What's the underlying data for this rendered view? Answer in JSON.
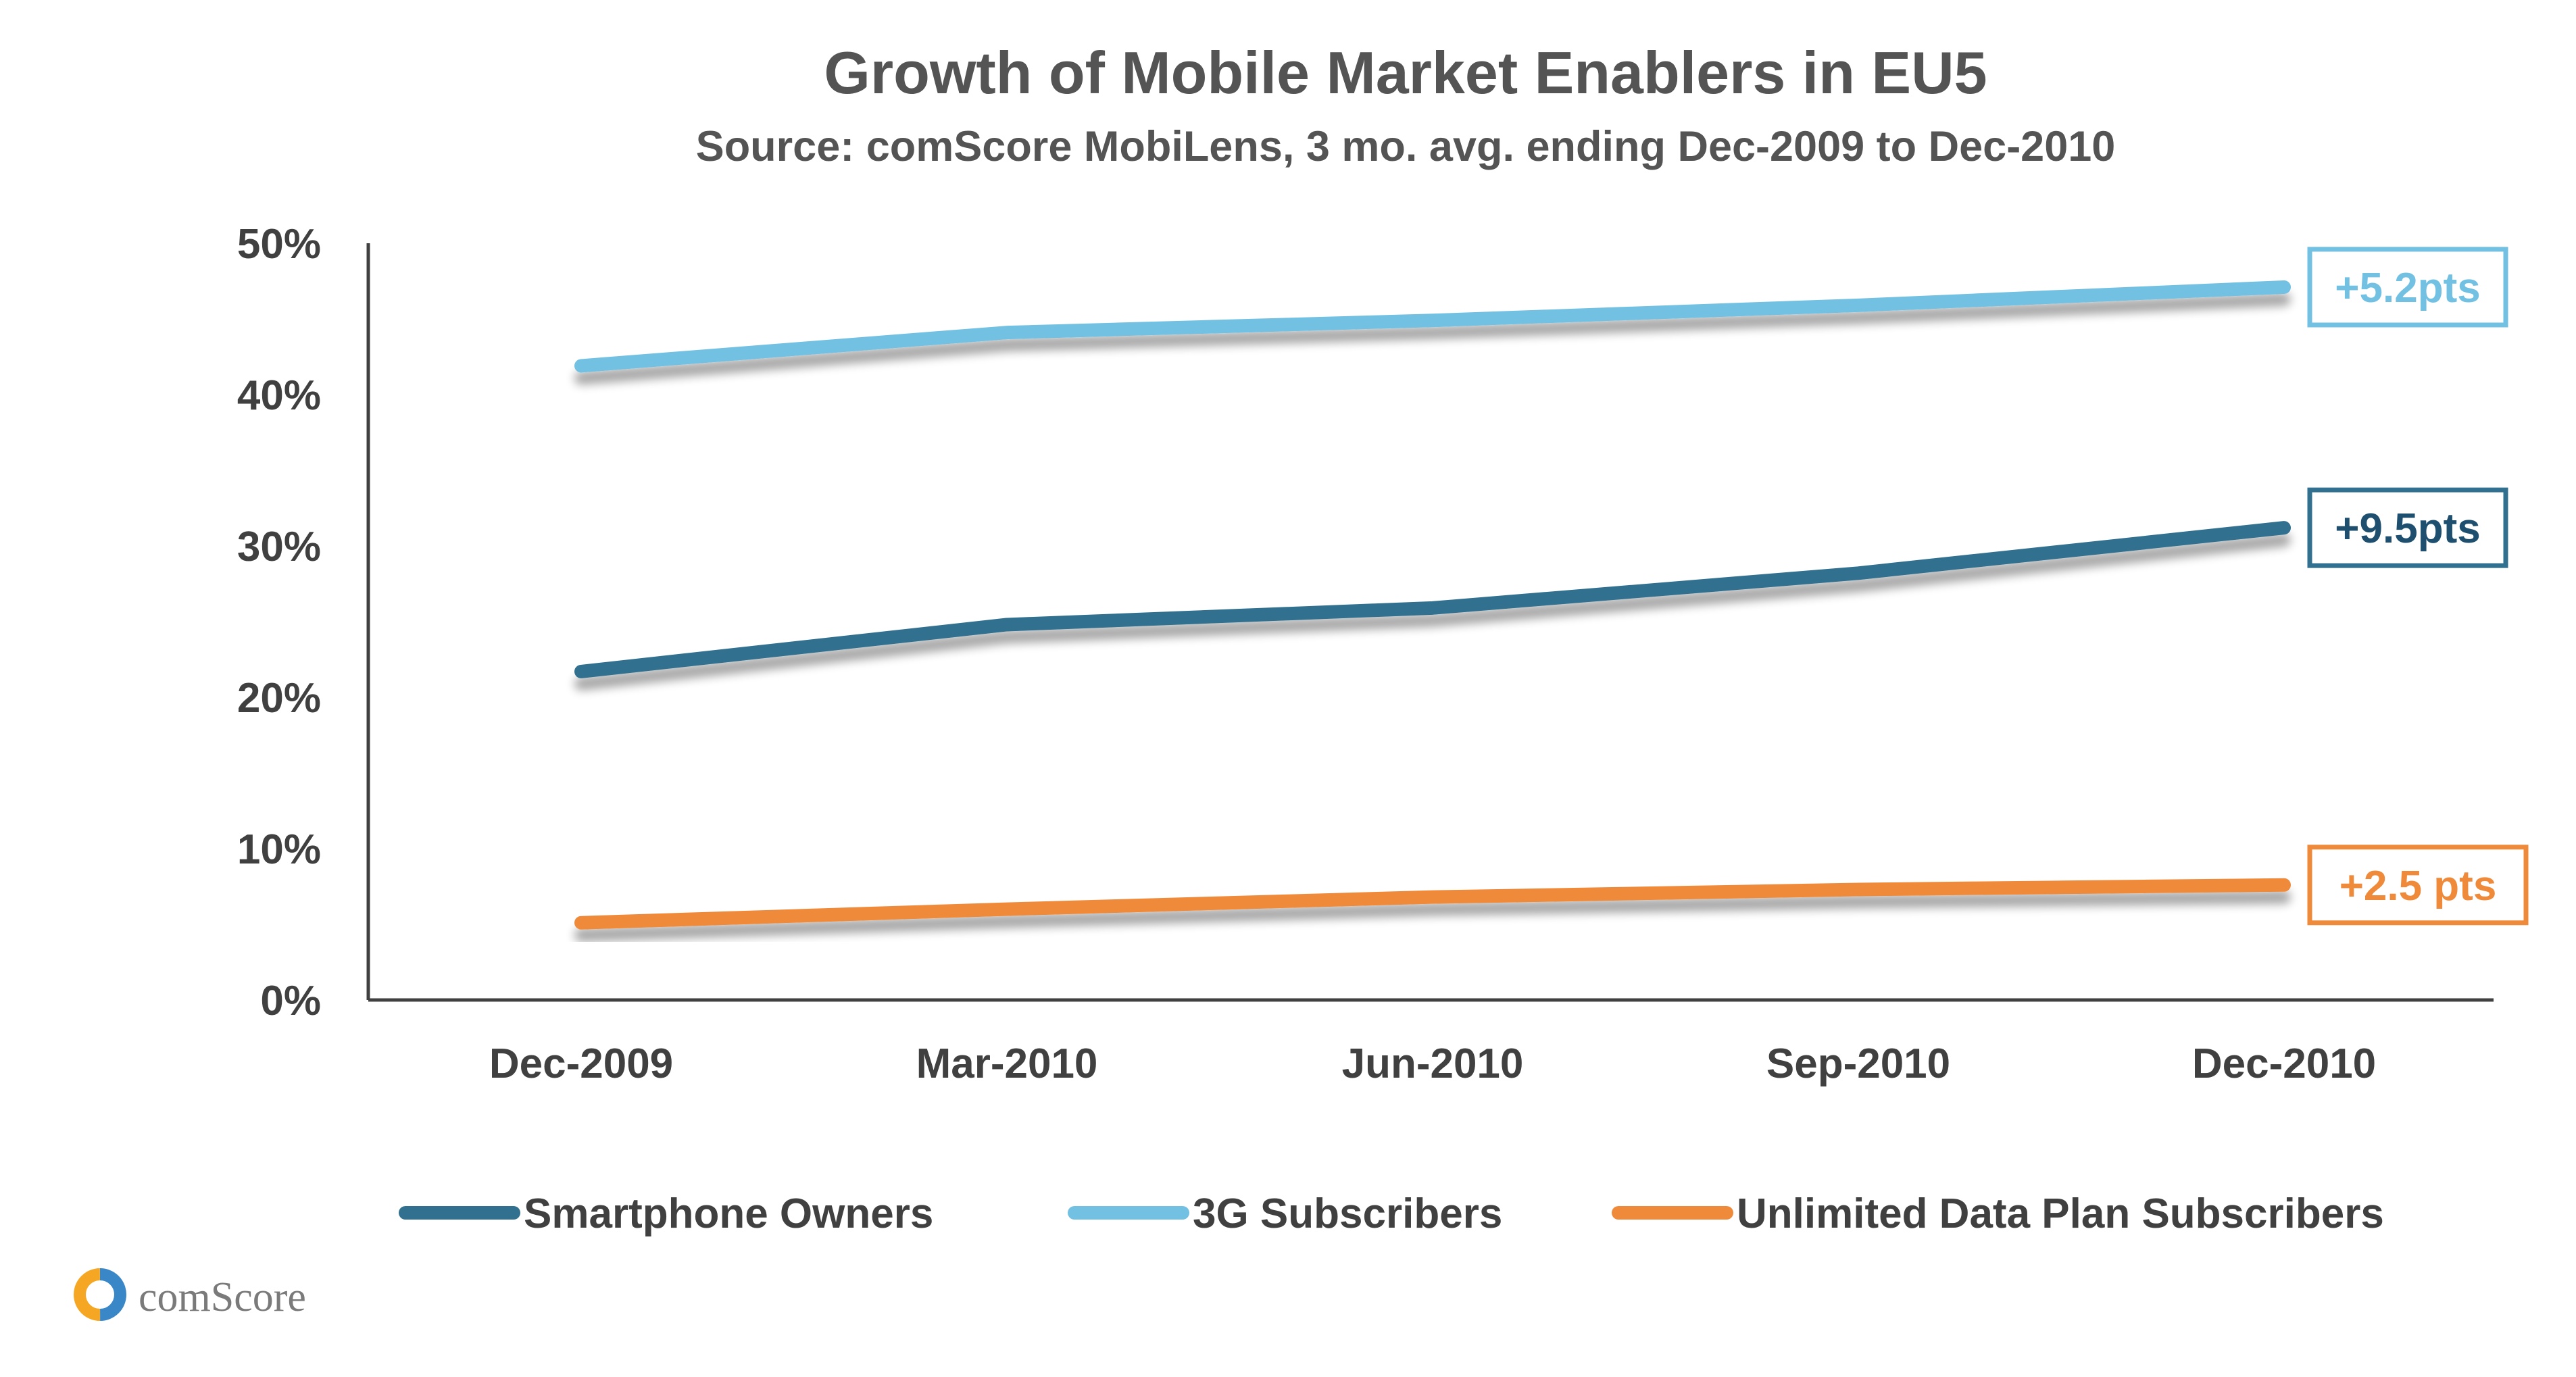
{
  "chart_data": {
    "type": "line",
    "title": "Growth of Mobile Market Enablers in EU5",
    "subtitle": "Source: comScore MobiLens, 3 mo. avg. ending Dec-2009 to Dec-2010",
    "categories": [
      "Dec-2009",
      "Mar-2010",
      "Jun-2010",
      "Sep-2010",
      "Dec-2010"
    ],
    "ylim": [
      0,
      50
    ],
    "y_ticks": [
      0,
      10,
      20,
      30,
      40,
      50
    ],
    "y_tick_labels": [
      "0%",
      "10%",
      "20%",
      "30%",
      "40%",
      "50%"
    ],
    "grid": false,
    "legend_position": "bottom",
    "series": [
      {
        "name": "Smartphone Owners",
        "color": "#31708F",
        "values": [
          21.7,
          24.8,
          25.9,
          28.2,
          31.2
        ],
        "annotation": "+9.5pts"
      },
      {
        "name": "3G Subscribers",
        "color": "#72C0E2",
        "values": [
          41.9,
          44.1,
          44.9,
          45.9,
          47.1
        ],
        "annotation": "+5.2pts"
      },
      {
        "name": "Unlimited Data Plan Subscribers",
        "color": "#EF8A3B",
        "values": [
          5.1,
          6.0,
          6.8,
          7.3,
          7.6
        ],
        "annotation": "+2.5 pts"
      }
    ]
  },
  "branding": {
    "logo_text": "comScore",
    "logo_icon": "comscore-logo-icon",
    "logo_colors": [
      "#F5A623",
      "#3A87C8"
    ]
  },
  "colors": {
    "axis": "#404040",
    "text": "#404040",
    "title": "#545454"
  }
}
